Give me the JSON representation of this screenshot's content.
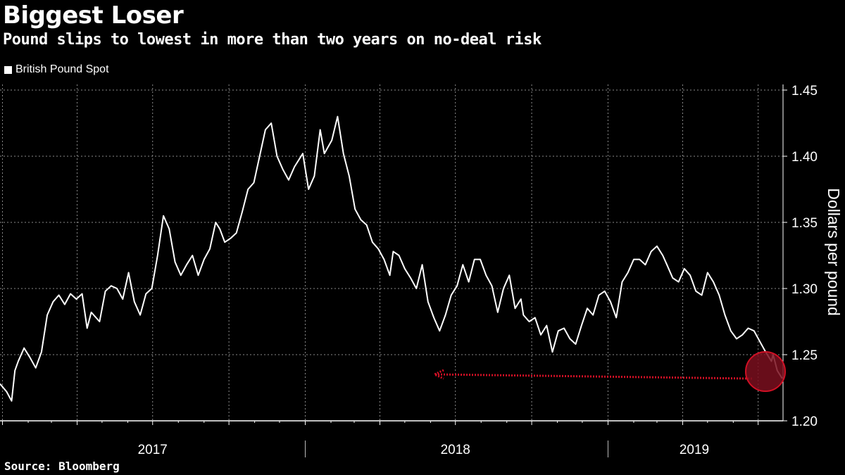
{
  "title": "Biggest Loser",
  "subtitle": "Pound slips to lowest in more than two years on no-deal risk",
  "source": "Source: Bloomberg",
  "colors": {
    "background": "#000000",
    "line": "#ffffff",
    "grid": "#8a8a8a",
    "annotation": "#d01025"
  },
  "chart_data": {
    "type": "line",
    "title": "Biggest Loser",
    "subtitle": "Pound slips to lowest in more than two years on no-deal risk",
    "ylabel": "Dollars per pound",
    "ylim": [
      1.2,
      1.45
    ],
    "yticks": [
      1.2,
      1.25,
      1.3,
      1.35,
      1.4,
      1.45
    ],
    "ytick_labels": [
      "1.20",
      "1.25",
      "1.30",
      "1.35",
      "1.40",
      "1.45"
    ],
    "x_range": [
      "2016-12-29",
      "2019-07-31"
    ],
    "year_labels": [
      {
        "label": "2017",
        "date": "2017-07-01"
      },
      {
        "label": "2018",
        "date": "2018-07-01"
      },
      {
        "label": "2019",
        "date": "2019-04-15"
      }
    ],
    "year_boundaries": [
      "2018-01-01",
      "2019-01-01"
    ],
    "grid": true,
    "legend_position": "top-left",
    "series": [
      {
        "name": "British Pound Spot",
        "x": [
          "2016-12-29",
          "2017-01-06",
          "2017-01-12",
          "2017-01-16",
          "2017-01-20",
          "2017-01-27",
          "2017-02-03",
          "2017-02-10",
          "2017-02-17",
          "2017-02-24",
          "2017-03-03",
          "2017-03-10",
          "2017-03-17",
          "2017-03-24",
          "2017-03-31",
          "2017-04-07",
          "2017-04-13",
          "2017-04-18",
          "2017-04-28",
          "2017-05-05",
          "2017-05-12",
          "2017-05-19",
          "2017-05-26",
          "2017-06-02",
          "2017-06-09",
          "2017-06-16",
          "2017-06-23",
          "2017-06-30",
          "2017-07-07",
          "2017-07-14",
          "2017-07-21",
          "2017-07-28",
          "2017-08-04",
          "2017-08-11",
          "2017-08-18",
          "2017-08-25",
          "2017-09-01",
          "2017-09-08",
          "2017-09-15",
          "2017-09-20",
          "2017-09-26",
          "2017-10-03",
          "2017-10-10",
          "2017-10-17",
          "2017-10-24",
          "2017-10-31",
          "2017-11-07",
          "2017-11-14",
          "2017-11-21",
          "2017-11-28",
          "2017-12-05",
          "2017-12-12",
          "2017-12-19",
          "2017-12-29",
          "2018-01-05",
          "2018-01-12",
          "2018-01-19",
          "2018-01-24",
          "2018-02-02",
          "2018-02-09",
          "2018-02-16",
          "2018-02-23",
          "2018-03-02",
          "2018-03-09",
          "2018-03-16",
          "2018-03-23",
          "2018-03-30",
          "2018-04-06",
          "2018-04-13",
          "2018-04-17",
          "2018-04-24",
          "2018-05-01",
          "2018-05-08",
          "2018-05-15",
          "2018-05-22",
          "2018-05-29",
          "2018-06-05",
          "2018-06-12",
          "2018-06-19",
          "2018-06-26",
          "2018-07-03",
          "2018-07-10",
          "2018-07-17",
          "2018-07-24",
          "2018-07-31",
          "2018-08-07",
          "2018-08-14",
          "2018-08-21",
          "2018-08-28",
          "2018-09-04",
          "2018-09-11",
          "2018-09-18",
          "2018-09-21",
          "2018-09-28",
          "2018-10-05",
          "2018-10-12",
          "2018-10-19",
          "2018-10-26",
          "2018-11-02",
          "2018-11-09",
          "2018-11-16",
          "2018-11-23",
          "2018-11-30",
          "2018-12-07",
          "2018-12-14",
          "2018-12-21",
          "2018-12-28",
          "2019-01-04",
          "2019-01-11",
          "2019-01-18",
          "2019-01-25",
          "2019-02-01",
          "2019-02-08",
          "2019-02-15",
          "2019-02-22",
          "2019-03-01",
          "2019-03-08",
          "2019-03-13",
          "2019-03-20",
          "2019-03-27",
          "2019-04-03",
          "2019-04-10",
          "2019-04-17",
          "2019-04-24",
          "2019-05-01",
          "2019-05-08",
          "2019-05-15",
          "2019-05-22",
          "2019-05-29",
          "2019-06-05",
          "2019-06-12",
          "2019-06-19",
          "2019-06-26",
          "2019-07-03",
          "2019-07-10",
          "2019-07-17",
          "2019-07-19",
          "2019-07-24",
          "2019-07-30"
        ],
        "y": [
          1.228,
          1.222,
          1.215,
          1.238,
          1.245,
          1.255,
          1.248,
          1.24,
          1.252,
          1.28,
          1.29,
          1.295,
          1.288,
          1.296,
          1.292,
          1.296,
          1.27,
          1.282,
          1.275,
          1.298,
          1.302,
          1.3,
          1.292,
          1.312,
          1.29,
          1.28,
          1.296,
          1.3,
          1.325,
          1.355,
          1.345,
          1.32,
          1.31,
          1.318,
          1.325,
          1.31,
          1.322,
          1.33,
          1.35,
          1.345,
          1.335,
          1.338,
          1.342,
          1.358,
          1.375,
          1.38,
          1.4,
          1.42,
          1.425,
          1.4,
          1.39,
          1.382,
          1.392,
          1.402,
          1.375,
          1.385,
          1.42,
          1.402,
          1.412,
          1.43,
          1.402,
          1.385,
          1.36,
          1.352,
          1.348,
          1.335,
          1.33,
          1.322,
          1.31,
          1.328,
          1.325,
          1.315,
          1.308,
          1.3,
          1.318,
          1.29,
          1.278,
          1.268,
          1.28,
          1.295,
          1.302,
          1.318,
          1.305,
          1.322,
          1.322,
          1.31,
          1.302,
          1.282,
          1.3,
          1.31,
          1.285,
          1.292,
          1.28,
          1.275,
          1.278,
          1.265,
          1.272,
          1.252,
          1.268,
          1.27,
          1.262,
          1.258,
          1.272,
          1.285,
          1.28,
          1.295,
          1.298,
          1.29,
          1.278,
          1.305,
          1.312,
          1.322,
          1.322,
          1.318,
          1.328,
          1.332,
          1.325,
          1.318,
          1.308,
          1.305,
          1.315,
          1.31,
          1.298,
          1.295,
          1.312,
          1.305,
          1.295,
          1.28,
          1.268,
          1.262,
          1.265,
          1.27,
          1.268,
          1.26,
          1.252,
          1.245,
          1.25,
          1.238,
          1.232
        ]
      }
    ]
  }
}
